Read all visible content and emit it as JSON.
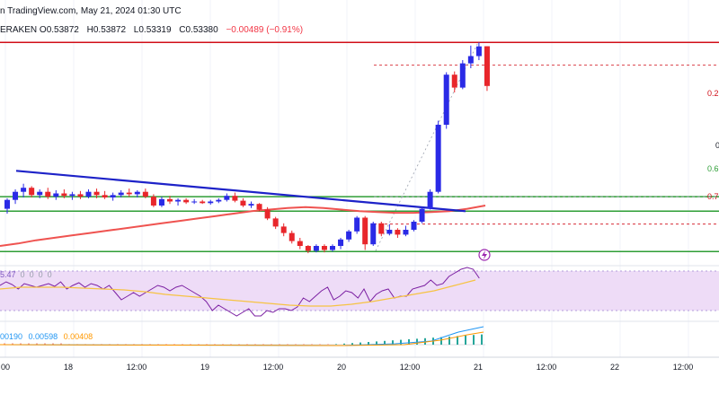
{
  "header": {
    "source": "n TradingView.com, May 21, 2024 01:30 UTC",
    "exchange": "ERAKEN",
    "open_label": "O",
    "open": "0.53872",
    "high_label": "H",
    "high": "0.53872",
    "low_label": "L",
    "low": "0.53319",
    "close_label": "C",
    "close": "0.53380",
    "change": "−0.00489 (−0.91%)"
  },
  "fib_labels": [
    "0.2",
    "0",
    "0.6",
    "0.7"
  ],
  "rsi": {
    "value": "5.47",
    "extras": [
      "0",
      "0",
      "0",
      "0"
    ]
  },
  "macd": {
    "v1": "00190",
    "v2": "0.00598",
    "v3": "0.00408"
  },
  "xaxis_ticks": [
    "00",
    "18",
    "12:00",
    "19",
    "12:00",
    "20",
    "12:00",
    "21",
    "12:00",
    "22",
    "12:00"
  ],
  "colors": {
    "up": "#2a2ae6",
    "down": "#e8262b",
    "ema": "#ef5350",
    "trendline": "#1d22c8",
    "support": "#2e9e36",
    "resistance": "#d10e18",
    "rsi": "#7b1fa2",
    "rsi_ma": "#f6c343",
    "rsi_band": "#eedcf7",
    "macd": "#2196f3",
    "signal": "#ff9800"
  },
  "chart_data": {
    "type": "candlestick",
    "title": "",
    "price_levels": {
      "horizontal_red": 0.5392,
      "horizontal_green": [
        0.5201,
        0.5183,
        0.5133
      ],
      "fib_dashed": [
        0.5392,
        0.5364,
        0.5201,
        0.5167
      ]
    },
    "candles": [
      [
        0.5186,
        0.5199,
        0.518,
        0.5197
      ],
      [
        0.5197,
        0.521,
        0.5192,
        0.5207
      ],
      [
        0.5207,
        0.5217,
        0.52,
        0.5212
      ],
      [
        0.5212,
        0.5214,
        0.52,
        0.5203
      ],
      [
        0.5203,
        0.521,
        0.5199,
        0.5207
      ],
      [
        0.5207,
        0.5212,
        0.5198,
        0.5201
      ],
      [
        0.5201,
        0.5209,
        0.5197,
        0.5205
      ],
      [
        0.5205,
        0.521,
        0.5199,
        0.5202
      ],
      [
        0.5202,
        0.5207,
        0.5197,
        0.5204
      ],
      [
        0.5204,
        0.5208,
        0.5198,
        0.5201
      ],
      [
        0.5201,
        0.521,
        0.5199,
        0.5207
      ],
      [
        0.5207,
        0.5211,
        0.5199,
        0.5203
      ],
      [
        0.5203,
        0.5208,
        0.5198,
        0.52
      ],
      [
        0.52,
        0.5206,
        0.5196,
        0.5203
      ],
      [
        0.5203,
        0.5209,
        0.52,
        0.5206
      ],
      [
        0.5206,
        0.5211,
        0.5201,
        0.5204
      ],
      [
        0.5204,
        0.5209,
        0.52,
        0.5207
      ],
      [
        0.5207,
        0.5211,
        0.5199,
        0.5201
      ],
      [
        0.5201,
        0.5204,
        0.5188,
        0.519
      ],
      [
        0.519,
        0.5201,
        0.5188,
        0.5198
      ],
      [
        0.5198,
        0.5202,
        0.5192,
        0.5195
      ],
      [
        0.5195,
        0.5199,
        0.519,
        0.5197
      ],
      [
        0.5197,
        0.5199,
        0.5192,
        0.5194
      ],
      [
        0.5194,
        0.5198,
        0.5192,
        0.5195
      ],
      [
        0.5195,
        0.5197,
        0.5192,
        0.5193
      ],
      [
        0.5193,
        0.5197,
        0.5191,
        0.5195
      ],
      [
        0.5195,
        0.5199,
        0.5193,
        0.5197
      ],
      [
        0.5197,
        0.5205,
        0.5195,
        0.5202
      ],
      [
        0.5202,
        0.5206,
        0.5194,
        0.5196
      ],
      [
        0.5196,
        0.5199,
        0.5188,
        0.519
      ],
      [
        0.519,
        0.5195,
        0.5187,
        0.5192
      ],
      [
        0.5192,
        0.5193,
        0.5183,
        0.5185
      ],
      [
        0.5185,
        0.5188,
        0.5172,
        0.5174
      ],
      [
        0.5174,
        0.5176,
        0.5161,
        0.5164
      ],
      [
        0.5164,
        0.5168,
        0.5152,
        0.5156
      ],
      [
        0.5156,
        0.5159,
        0.5143,
        0.5146
      ],
      [
        0.5146,
        0.515,
        0.5136,
        0.514
      ],
      [
        0.514,
        0.5141,
        0.5131,
        0.5134
      ],
      [
        0.5134,
        0.5142,
        0.5132,
        0.514
      ],
      [
        0.514,
        0.5142,
        0.5132,
        0.5135
      ],
      [
        0.5135,
        0.5142,
        0.5133,
        0.514
      ],
      [
        0.514,
        0.515,
        0.5136,
        0.5148
      ],
      [
        0.5148,
        0.516,
        0.5145,
        0.5158
      ],
      [
        0.5158,
        0.5177,
        0.5155,
        0.5175
      ],
      [
        0.5175,
        0.5177,
        0.5135,
        0.5142
      ],
      [
        0.5142,
        0.517,
        0.514,
        0.5168
      ],
      [
        0.5168,
        0.517,
        0.5152,
        0.5155
      ],
      [
        0.5155,
        0.5167,
        0.5153,
        0.516
      ],
      [
        0.516,
        0.5162,
        0.515,
        0.5154
      ],
      [
        0.5154,
        0.5165,
        0.5152,
        0.516
      ],
      [
        0.516,
        0.5172,
        0.5158,
        0.517
      ],
      [
        0.517,
        0.5188,
        0.5168,
        0.5186
      ],
      [
        0.5186,
        0.521,
        0.5185,
        0.5207
      ],
      [
        0.5207,
        0.5295,
        0.5205,
        0.529
      ],
      [
        0.529,
        0.5355,
        0.5285,
        0.5352
      ],
      [
        0.5352,
        0.5356,
        0.533,
        0.5336
      ],
      [
        0.5336,
        0.537,
        0.5334,
        0.5366
      ],
      [
        0.5366,
        0.5388,
        0.536,
        0.5375
      ],
      [
        0.5375,
        0.5392,
        0.537,
        0.5387
      ],
      [
        0.53872,
        0.53872,
        0.53319,
        0.5338
      ]
    ]
  }
}
